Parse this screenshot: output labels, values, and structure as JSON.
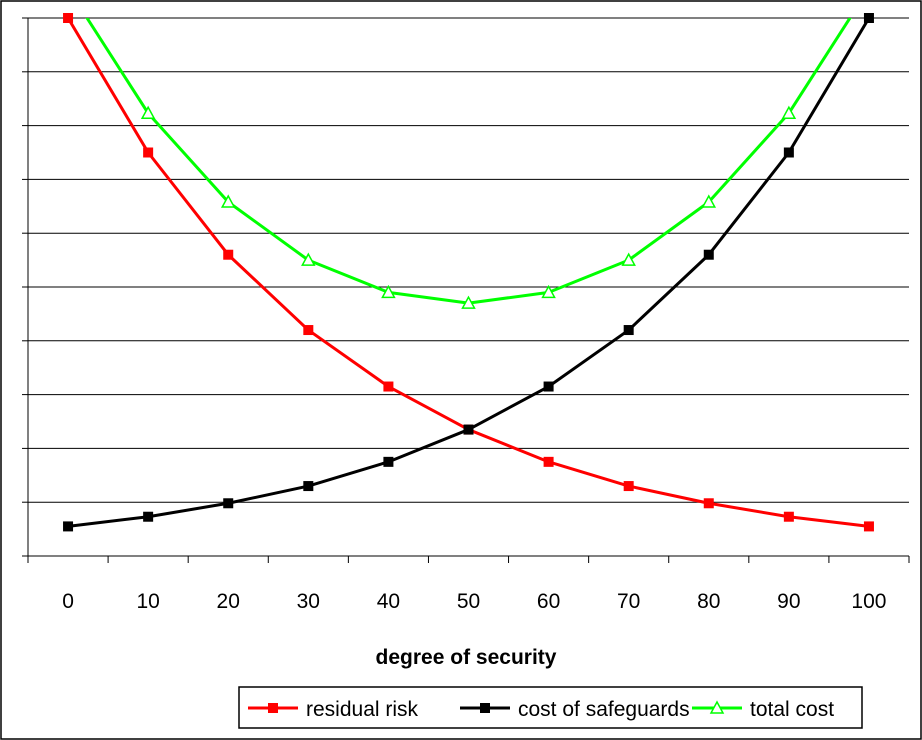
{
  "chart_data": {
    "type": "line",
    "title": "",
    "xlabel": "degree of security",
    "ylabel": "",
    "x": [
      0,
      10,
      20,
      30,
      40,
      50,
      60,
      70,
      80,
      90,
      100
    ],
    "xlim": [
      -5,
      105
    ],
    "ylim": [
      0,
      10
    ],
    "y_gridlines": [
      0,
      1,
      2,
      3,
      4,
      5,
      6,
      7,
      8,
      9,
      10
    ],
    "grid": true,
    "legend_position": "bottom",
    "series": [
      {
        "name": "residual risk",
        "color": "#ff0000",
        "marker": "square",
        "values": [
          10.0,
          7.5,
          5.6,
          4.2,
          3.15,
          2.35,
          1.75,
          1.3,
          0.98,
          0.73,
          0.55
        ]
      },
      {
        "name": "cost of safeguards",
        "color": "#000000",
        "marker": "square",
        "values": [
          0.55,
          0.73,
          0.98,
          1.3,
          1.75,
          2.35,
          3.15,
          4.2,
          5.6,
          7.5,
          10.0
        ]
      },
      {
        "name": "total cost",
        "color": "#00ff00",
        "marker": "triangle",
        "values": [
          10.55,
          8.23,
          6.58,
          5.5,
          4.9,
          4.7,
          4.9,
          5.5,
          6.58,
          8.23,
          10.55
        ]
      }
    ]
  }
}
